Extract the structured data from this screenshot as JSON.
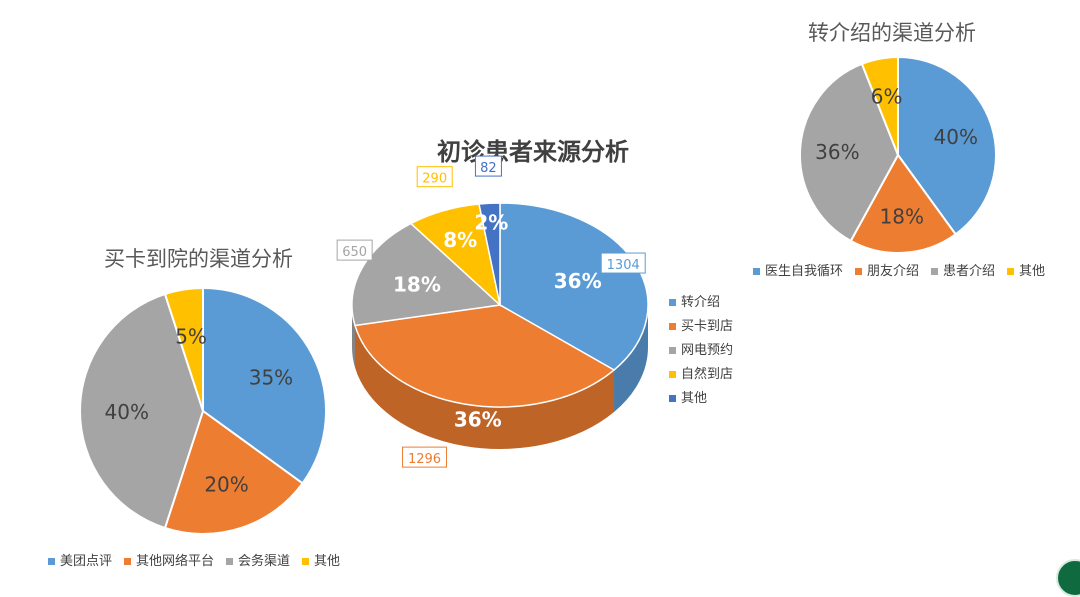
{
  "chart_data": [
    {
      "type": "pie",
      "title": "买卡到院的渠道分析",
      "categories": [
        "美团点评",
        "其他网络平台",
        "会务渠道",
        "其他"
      ],
      "values": [
        35,
        20,
        40,
        5
      ],
      "value_labels": [
        "35%",
        "20%",
        "40%",
        "5%"
      ],
      "colors": [
        "#5b9bd5",
        "#ed7d31",
        "#a5a5a5",
        "#ffc000"
      ],
      "legend": "bottom"
    },
    {
      "type": "pie",
      "title": "初诊患者来源分析",
      "style": "3d",
      "categories": [
        "转介绍",
        "买卡到店",
        "网电预约",
        "自然到店",
        "其他"
      ],
      "values": [
        1304,
        1296,
        650,
        290,
        82
      ],
      "value_labels": [
        "1304",
        "1296",
        "650",
        "290",
        "82"
      ],
      "percent_labels": [
        "36%",
        "36%",
        "18%",
        "8%",
        "2%"
      ],
      "colors": [
        "#5b9bd5",
        "#ed7d31",
        "#a5a5a5",
        "#ffc000",
        "#4472c4"
      ],
      "legend": "right"
    },
    {
      "type": "pie",
      "title": "转介绍的渠道分析",
      "categories": [
        "医生自我循环",
        "朋友介绍",
        "患者介绍",
        "其他"
      ],
      "values": [
        40,
        18,
        36,
        6
      ],
      "value_labels": [
        "40%",
        "18%",
        "36%",
        "6%"
      ],
      "colors": [
        "#5b9bd5",
        "#ed7d31",
        "#a5a5a5",
        "#ffc000"
      ],
      "legend": "bottom"
    }
  ]
}
